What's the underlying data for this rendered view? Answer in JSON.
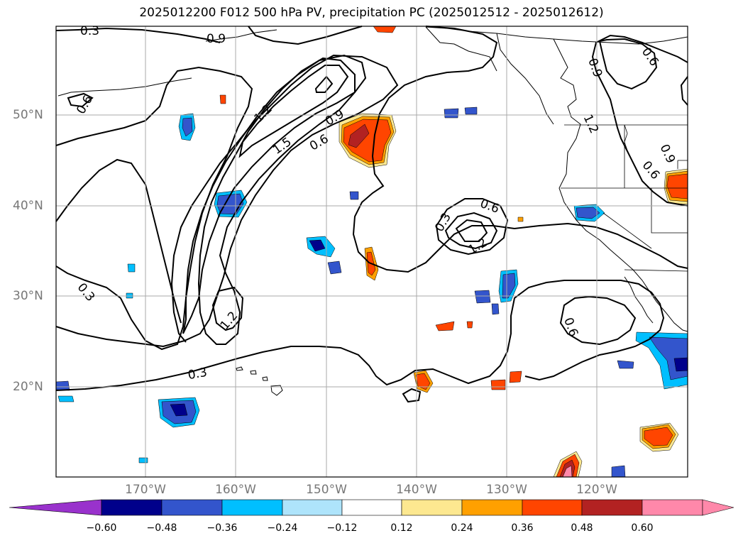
{
  "title": "2025012200 F012 500 hPa PV, precipitation PC (2025012512 - 2025012612)",
  "map": {
    "lat_labels": [
      "50°N",
      "40°N",
      "30°N",
      "20°N"
    ],
    "lon_labels": [
      "170°W",
      "160°W",
      "150°W",
      "140°W",
      "130°W",
      "120°W"
    ],
    "contour_labels": [
      "0.3",
      "0.9",
      "0.6",
      "1.2",
      "1.5",
      "0.9",
      "0.6",
      "0.9",
      "0.6",
      "1.2",
      "0.9",
      "0.6",
      "0.3",
      "0.6",
      "0.3",
      "1.2",
      "0.3",
      "0.6",
      "0.9"
    ],
    "fill_colors": {
      "dark_navy": "#00008b",
      "royal_blue": "#3355cc",
      "sky_blue": "#00bfff",
      "light_blue": "#aee4fb",
      "light_yellow": "#fde890",
      "orange": "#ffa000",
      "red_orange": "#ff4500",
      "dark_red": "#b22222",
      "pink": "#ff88aa"
    }
  },
  "colorbar": {
    "ticks": [
      "−0.60",
      "−0.48",
      "−0.36",
      "−0.24",
      "−0.12",
      "0.12",
      "0.24",
      "0.36",
      "0.48",
      "0.60"
    ],
    "colors": [
      "#9932cc",
      "#00008b",
      "#3355cc",
      "#00bfff",
      "#aee4fb",
      "#ffffff",
      "#fde890",
      "#ffa000",
      "#ff4500",
      "#b22222",
      "#ff88aa",
      "#ff88aa"
    ]
  }
}
